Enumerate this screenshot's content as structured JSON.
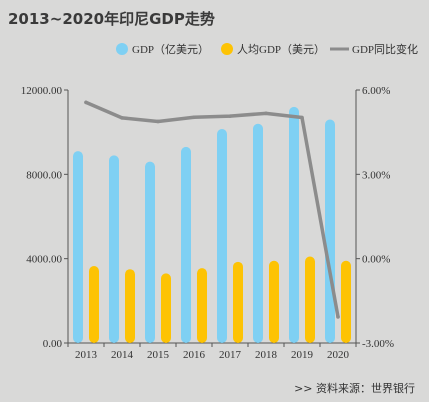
{
  "title": "2013~2020年印尼GDP走势",
  "source": ">>  资料来源：世界银行",
  "colors": {
    "gdp": "#7fd0f3",
    "per_capita": "#fdc304",
    "growth": "#8c8c8c",
    "axis": "#555555"
  },
  "chart_data": {
    "type": "bar",
    "categories": [
      "2013",
      "2014",
      "2015",
      "2016",
      "2017",
      "2018",
      "2019",
      "2020"
    ],
    "series": [
      {
        "name": "GDP（亿美元）",
        "type": "bar",
        "axis": "left",
        "values": [
          9100,
          8900,
          8600,
          9300,
          10150,
          10400,
          11200,
          10600
        ]
      },
      {
        "name": "人均GDP（美元）",
        "type": "bar",
        "axis": "left",
        "values": [
          3650,
          3500,
          3300,
          3550,
          3850,
          3900,
          4100,
          3900
        ]
      },
      {
        "name": "GDP同比变化",
        "type": "line",
        "axis": "right",
        "values": [
          5.56,
          5.01,
          4.88,
          5.03,
          5.07,
          5.17,
          5.02,
          -2.07
        ]
      }
    ],
    "ylim_left": [
      0,
      12000
    ],
    "ylim_right": [
      -3,
      6
    ],
    "left_ticks": [
      "0.00",
      "4000.00",
      "8000.00",
      "12000.00"
    ],
    "right_ticks": [
      "-3.00%",
      "0.00%",
      "3.00%",
      "6.00%"
    ],
    "legend_position": "top-right"
  }
}
